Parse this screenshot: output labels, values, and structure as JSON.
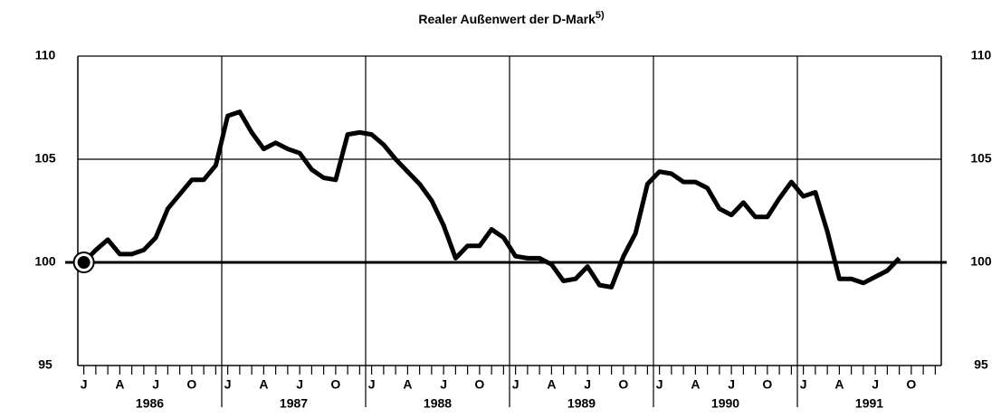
{
  "chart_data": {
    "type": "line",
    "title": "Realer Außenwert der D-Mark",
    "title_note": "5)",
    "years": [
      "1986",
      "1987",
      "1988",
      "1989",
      "1990",
      "1991"
    ],
    "month_labels": [
      "J",
      "A",
      "J",
      "O"
    ],
    "series": [
      {
        "color": "#000000",
        "values": [
          100.0,
          100.6,
          101.1,
          100.4,
          100.4,
          100.6,
          101.2,
          102.6,
          103.3,
          104.0,
          104.0,
          104.7,
          107.1,
          107.3,
          106.3,
          105.5,
          105.8,
          105.5,
          105.3,
          104.5,
          104.1,
          104.0,
          106.2,
          106.3,
          106.2,
          105.7,
          105.0,
          104.4,
          103.8,
          103.0,
          101.8,
          100.2,
          100.8,
          100.8,
          101.6,
          101.2,
          100.3,
          100.2,
          100.2,
          99.9,
          99.1,
          99.2,
          99.8,
          98.9,
          98.8,
          100.3,
          101.4,
          103.8,
          104.4,
          104.3,
          103.9,
          103.9,
          103.6,
          102.6,
          102.3,
          102.9,
          102.2,
          102.2,
          103.1,
          103.9,
          103.2,
          103.4,
          101.5,
          99.2,
          99.2,
          99.0,
          99.3,
          99.6,
          100.2
        ]
      }
    ],
    "baseline": 100,
    "ylim": [
      95,
      110
    ],
    "yticks": [
      95,
      100,
      105,
      110
    ],
    "grid": true
  }
}
